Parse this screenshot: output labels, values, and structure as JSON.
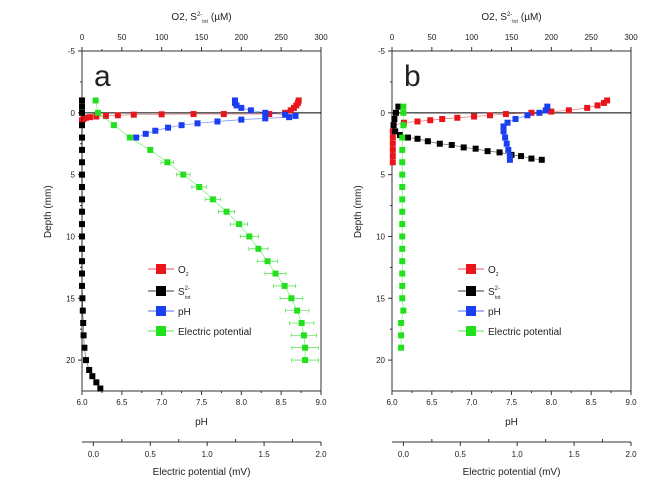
{
  "chart_data": [
    {
      "type": "scatter",
      "panel_label": "a",
      "top_axis": {
        "title": "O2, S",
        "title_sup": "2-",
        "title_sub": "tot",
        "title_unit": "(µM)",
        "range": [
          0,
          300
        ],
        "ticks": [
          "0",
          "50",
          "100",
          "150",
          "200",
          "250",
          "300"
        ]
      },
      "left_axis": {
        "title": "Depth (mm)",
        "range": [
          -5,
          22.5
        ],
        "ticks": [
          "-5",
          "0",
          "5",
          "10",
          "15",
          "20"
        ]
      },
      "bottom_axis": {
        "title": "pH",
        "range": [
          6.0,
          9.0
        ],
        "ticks": [
          "6.0",
          "6.5",
          "7.0",
          "7.5",
          "8.0",
          "8.5",
          "9.0"
        ]
      },
      "extra_axis": {
        "title": "Electric potential (mV)",
        "range": [
          -0.1,
          2.0
        ],
        "ticks": [
          "0.0",
          "0.5",
          "1.0",
          "1.5",
          "2.0"
        ]
      },
      "legend": {
        "placement": "center-left",
        "entries": [
          {
            "label": "O",
            "sub": "2",
            "sup": "",
            "color": "#e8161b"
          },
          {
            "label": "S",
            "sub": "tot",
            "sup": "2-",
            "color": "#000000"
          },
          {
            "label": "pH",
            "sub": "",
            "sup": "",
            "color": "#1a3ff0"
          },
          {
            "label": "Electric potential",
            "sub": "",
            "sup": "",
            "color": "#22e01c"
          }
        ]
      },
      "series": [
        {
          "name": "O2",
          "axis": "top",
          "color": "#e8161b",
          "points": [
            [
              272,
              -1
            ],
            [
              271,
              -0.8
            ],
            [
              269,
              -0.6
            ],
            [
              266,
              -0.4
            ],
            [
              262,
              -0.2
            ],
            [
              255,
              0
            ],
            [
              235,
              0.1
            ],
            [
              178,
              0.1
            ],
            [
              140,
              0.1
            ],
            [
              100,
              0.12
            ],
            [
              65,
              0.15
            ],
            [
              45,
              0.2
            ],
            [
              30,
              0.25
            ],
            [
              18,
              0.3
            ],
            [
              10,
              0.35
            ],
            [
              5,
              0.4
            ],
            [
              2,
              0.5
            ],
            [
              0,
              0.6
            ]
          ]
        },
        {
          "name": "S2-tot",
          "axis": "top",
          "color": "#000000",
          "points": [
            [
              0,
              -1
            ],
            [
              0,
              -0.5
            ],
            [
              0,
              0
            ],
            [
              0,
              1
            ],
            [
              0,
              2
            ],
            [
              0,
              3
            ],
            [
              0,
              4
            ],
            [
              0,
              5
            ],
            [
              0,
              6
            ],
            [
              0,
              7
            ],
            [
              0,
              8
            ],
            [
              0,
              9
            ],
            [
              0,
              10
            ],
            [
              0,
              11
            ],
            [
              0,
              12
            ],
            [
              0,
              13
            ],
            [
              0,
              14
            ],
            [
              0.5,
              15
            ],
            [
              1,
              16
            ],
            [
              1.5,
              17
            ],
            [
              2,
              18
            ],
            [
              3,
              19
            ],
            [
              5,
              20
            ],
            [
              9,
              20.8
            ],
            [
              13,
              21.3
            ],
            [
              18,
              21.8
            ],
            [
              23,
              22.3
            ]
          ]
        },
        {
          "name": "pH",
          "axis": "bottom",
          "color": "#1a3ff0",
          "points": [
            [
              7.92,
              -1
            ],
            [
              7.92,
              -0.8
            ],
            [
              7.94,
              -0.6
            ],
            [
              8.0,
              -0.4
            ],
            [
              8.12,
              -0.2
            ],
            [
              8.3,
              0
            ],
            [
              8.55,
              0.15
            ],
            [
              8.68,
              0.25
            ],
            [
              8.6,
              0.35
            ],
            [
              8.3,
              0.45
            ],
            [
              8.0,
              0.55
            ],
            [
              7.7,
              0.7
            ],
            [
              7.45,
              0.85
            ],
            [
              7.25,
              1.0
            ],
            [
              7.08,
              1.2
            ],
            [
              6.92,
              1.45
            ],
            [
              6.8,
              1.7
            ],
            [
              6.68,
              2.0
            ]
          ]
        },
        {
          "name": "Electric potential",
          "axis": "extra",
          "color": "#22e01c",
          "error": 0.08,
          "points": [
            [
              0.02,
              -1
            ],
            [
              0.04,
              0
            ],
            [
              0.18,
              1
            ],
            [
              0.32,
              2
            ],
            [
              0.5,
              3
            ],
            [
              0.65,
              4
            ],
            [
              0.79,
              5
            ],
            [
              0.93,
              6
            ],
            [
              1.05,
              7
            ],
            [
              1.17,
              8
            ],
            [
              1.28,
              9
            ],
            [
              1.37,
              10
            ],
            [
              1.45,
              11
            ],
            [
              1.53,
              12
            ],
            [
              1.6,
              13
            ],
            [
              1.68,
              14
            ],
            [
              1.74,
              15
            ],
            [
              1.79,
              16
            ],
            [
              1.83,
              17
            ],
            [
              1.85,
              18
            ],
            [
              1.86,
              19
            ],
            [
              1.86,
              20
            ]
          ]
        }
      ]
    },
    {
      "type": "scatter",
      "panel_label": "b",
      "top_axis": {
        "title": "O2, S",
        "title_sup": "2-",
        "title_sub": "tot",
        "title_unit": "(µM)",
        "range": [
          0,
          300
        ],
        "ticks": [
          "0",
          "50",
          "100",
          "150",
          "200",
          "250",
          "300"
        ]
      },
      "left_axis": {
        "title": "Depth (mm)",
        "range": [
          -5,
          22.5
        ],
        "ticks": [
          "-5",
          "0",
          "5",
          "10",
          "15",
          "20"
        ]
      },
      "bottom_axis": {
        "title": "pH",
        "range": [
          6.0,
          9.0
        ],
        "ticks": [
          "6.0",
          "6.5",
          "7.0",
          "7.5",
          "8.0",
          "8.5",
          "9.0"
        ]
      },
      "extra_axis": {
        "title": "Electric potential (mV)",
        "range": [
          -0.1,
          2.0
        ],
        "ticks": [
          "0.0",
          "0.5",
          "1.0",
          "1.5",
          "2.0"
        ]
      },
      "legend": {
        "placement": "center-left",
        "entries": [
          {
            "label": "O",
            "sub": "2",
            "sup": "",
            "color": "#e8161b"
          },
          {
            "label": "S",
            "sub": "tot",
            "sup": "2-",
            "color": "#000000"
          },
          {
            "label": "pH",
            "sub": "",
            "sup": "",
            "color": "#1a3ff0"
          },
          {
            "label": "Electric potential",
            "sub": "",
            "sup": "",
            "color": "#22e01c"
          }
        ]
      },
      "series": [
        {
          "name": "O2",
          "axis": "top",
          "color": "#e8161b",
          "points": [
            [
              270,
              -1
            ],
            [
              266,
              -0.8
            ],
            [
              258,
              -0.6
            ],
            [
              245,
              -0.4
            ],
            [
              222,
              -0.2
            ],
            [
              200,
              -0.1
            ],
            [
              175,
              0
            ],
            [
              143,
              0.1
            ],
            [
              123,
              0.2
            ],
            [
              103,
              0.3
            ],
            [
              82,
              0.4
            ],
            [
              63,
              0.5
            ],
            [
              48,
              0.6
            ],
            [
              32,
              0.7
            ],
            [
              15,
              0.8
            ],
            [
              2,
              1.0
            ],
            [
              1,
              1.5
            ],
            [
              1,
              2
            ],
            [
              1,
              2.5
            ],
            [
              1,
              3
            ],
            [
              1,
              3.5
            ],
            [
              1,
              4
            ]
          ]
        },
        {
          "name": "S2-tot",
          "axis": "top",
          "color": "#000000",
          "points": [
            [
              8,
              -0.5
            ],
            [
              5,
              0
            ],
            [
              3,
              0.5
            ],
            [
              2,
              1
            ],
            [
              4,
              1.5
            ],
            [
              10,
              1.8
            ],
            [
              20,
              2.0
            ],
            [
              32,
              2.1
            ],
            [
              45,
              2.3
            ],
            [
              60,
              2.5
            ],
            [
              75,
              2.6
            ],
            [
              90,
              2.8
            ],
            [
              105,
              2.9
            ],
            [
              120,
              3.1
            ],
            [
              135,
              3.2
            ],
            [
              150,
              3.4
            ],
            [
              162,
              3.5
            ],
            [
              175,
              3.7
            ],
            [
              188,
              3.8
            ]
          ]
        },
        {
          "name": "pH",
          "axis": "bottom",
          "color": "#1a3ff0",
          "points": [
            [
              7.95,
              -0.5
            ],
            [
              7.93,
              -0.2
            ],
            [
              7.85,
              0
            ],
            [
              7.7,
              0.2
            ],
            [
              7.55,
              0.5
            ],
            [
              7.45,
              0.8
            ],
            [
              7.4,
              1.1
            ],
            [
              7.4,
              1.5
            ],
            [
              7.42,
              2.0
            ],
            [
              7.44,
              2.5
            ],
            [
              7.46,
              3.0
            ],
            [
              7.48,
              3.5
            ],
            [
              7.48,
              3.8
            ]
          ]
        },
        {
          "name": "Electric potential",
          "axis": "extra",
          "color": "#22e01c",
          "error": 0,
          "points": [
            [
              0.0,
              -0.5
            ],
            [
              0.0,
              0
            ],
            [
              0.0,
              1
            ],
            [
              -0.01,
              2
            ],
            [
              -0.01,
              3
            ],
            [
              -0.01,
              4
            ],
            [
              -0.01,
              5
            ],
            [
              -0.01,
              6
            ],
            [
              -0.01,
              7
            ],
            [
              -0.01,
              8
            ],
            [
              -0.01,
              9
            ],
            [
              -0.01,
              10
            ],
            [
              -0.01,
              11
            ],
            [
              -0.01,
              12
            ],
            [
              -0.01,
              13
            ],
            [
              -0.01,
              14
            ],
            [
              -0.01,
              15
            ],
            [
              0.0,
              16
            ],
            [
              -0.02,
              17
            ],
            [
              -0.02,
              18
            ],
            [
              -0.02,
              19
            ]
          ]
        }
      ]
    }
  ]
}
